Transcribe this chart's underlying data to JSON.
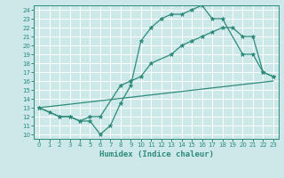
{
  "xlabel": "Humidex (Indice chaleur)",
  "xlim": [
    -0.5,
    23.5
  ],
  "ylim": [
    9.5,
    24.5
  ],
  "xticks": [
    0,
    1,
    2,
    3,
    4,
    5,
    6,
    7,
    8,
    9,
    10,
    11,
    12,
    13,
    14,
    15,
    16,
    17,
    18,
    19,
    20,
    21,
    22,
    23
  ],
  "yticks": [
    10,
    11,
    12,
    13,
    14,
    15,
    16,
    17,
    18,
    19,
    20,
    21,
    22,
    23,
    24
  ],
  "line_color": "#2e8b7a",
  "bg_color": "#cce8e8",
  "grid_color": "#ffffff",
  "line1_x": [
    0,
    1,
    2,
    3,
    4,
    5,
    6,
    7,
    8,
    9,
    10,
    11,
    12,
    13,
    14,
    15,
    16,
    17,
    18,
    20,
    21,
    22,
    23
  ],
  "line1_y": [
    13.0,
    12.5,
    12.0,
    12.0,
    11.5,
    11.5,
    10.0,
    11.0,
    13.5,
    15.5,
    20.5,
    22.0,
    23.0,
    23.5,
    23.5,
    24.0,
    24.5,
    23.0,
    23.0,
    19.0,
    19.0,
    17.0,
    16.5
  ],
  "line2_x": [
    0,
    2,
    3,
    4,
    5,
    6,
    8,
    9,
    10,
    11,
    13,
    14,
    15,
    16,
    17,
    18,
    19,
    20,
    21,
    22,
    23
  ],
  "line2_y": [
    13.0,
    12.0,
    12.0,
    11.5,
    12.0,
    12.0,
    15.5,
    16.0,
    16.5,
    18.0,
    19.0,
    20.0,
    20.5,
    21.0,
    21.5,
    22.0,
    22.0,
    21.0,
    21.0,
    17.0,
    16.5
  ],
  "line3_x": [
    0,
    23
  ],
  "line3_y": [
    13.0,
    16.0
  ]
}
